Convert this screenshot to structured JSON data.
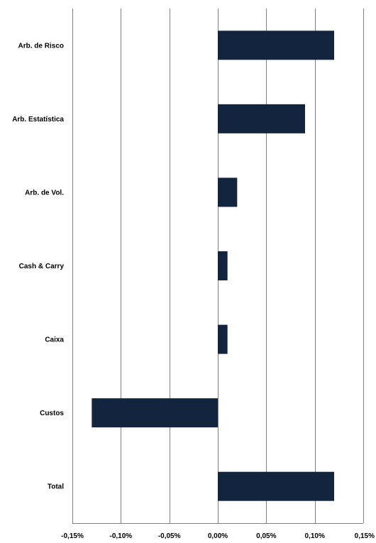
{
  "chart_data": {
    "type": "bar",
    "orientation": "horizontal",
    "categories": [
      "Arb. de Risco",
      "Arb. Estatística",
      "Arb. de Vol.",
      "Cash & Carry",
      "Caixa",
      "Custos",
      "Total"
    ],
    "values": [
      0.12,
      0.09,
      0.02,
      0.01,
      0.01,
      -0.13,
      0.12
    ],
    "value_unit": "%",
    "xlim": [
      -0.15,
      0.15
    ],
    "x_ticks": [
      -0.15,
      -0.1,
      -0.05,
      0.0,
      0.05,
      0.1,
      0.15
    ],
    "x_tick_labels": [
      "-0,15%",
      "-0,10%",
      "-0,05%",
      "0,00%",
      "0,05%",
      "0,10%",
      "0,15%"
    ],
    "grid": "vertical",
    "legend": "none",
    "bar_color": "#13243f",
    "gridline_color": "#808080",
    "title": "",
    "xlabel": "",
    "ylabel": ""
  }
}
